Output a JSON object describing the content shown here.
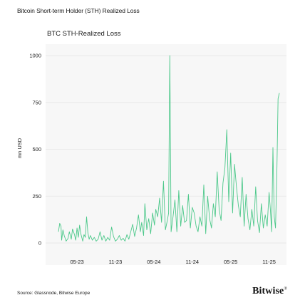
{
  "header": {
    "title": "Bitcoin Short-term Holder (STH) Realized Loss"
  },
  "footer": {
    "source": "Source: Glassnode, Bitwise Europe",
    "brand": "Bitwise",
    "brand_mark": "®"
  },
  "chart_data": {
    "type": "line",
    "title": "BTC STH-Realized Loss",
    "xlabel": "",
    "ylabel": "mn USD",
    "ylim": [
      0,
      1000
    ],
    "yticks": [
      0,
      250,
      500,
      750,
      1000
    ],
    "xtick_labels": [
      {
        "label": "05-23",
        "t": 2.9
      },
      {
        "label": "11-23",
        "t": 8.9
      },
      {
        "label": "05-24",
        "t": 14.9
      },
      {
        "label": "11-24",
        "t": 20.9
      },
      {
        "label": "05-25",
        "t": 26.9
      },
      {
        "label": "11-25",
        "t": 32.9
      }
    ],
    "grid": true,
    "legend": "none",
    "color": "#4cc88a",
    "series": [
      {
        "x_unit": "months since 2023-02",
        "x": [
          0.0,
          0.2,
          0.4,
          0.5,
          0.7,
          0.9,
          1.2,
          1.5,
          1.7,
          2.0,
          2.2,
          2.5,
          2.7,
          2.9,
          3.1,
          3.3,
          3.5,
          3.8,
          4.0,
          4.2,
          4.4,
          4.6,
          4.8,
          5.0,
          5.3,
          5.6,
          5.9,
          6.2,
          6.5,
          6.8,
          7.1,
          7.4,
          7.7,
          8.0,
          8.3,
          8.6,
          8.9,
          9.2,
          9.5,
          9.8,
          10.1,
          10.4,
          10.7,
          11.0,
          11.3,
          11.6,
          11.9,
          12.2,
          12.5,
          12.8,
          13.0,
          13.3,
          13.5,
          13.8,
          14.1,
          14.4,
          14.7,
          15.0,
          15.2,
          15.5,
          15.8,
          16.1,
          16.4,
          16.7,
          17.0,
          17.2,
          17.4,
          17.6,
          17.9,
          18.2,
          18.5,
          18.8,
          19.1,
          19.4,
          19.7,
          20.0,
          20.3,
          20.6,
          20.9,
          21.2,
          21.5,
          21.8,
          22.1,
          22.4,
          22.7,
          23.0,
          23.3,
          23.6,
          23.9,
          24.2,
          24.5,
          24.8,
          25.1,
          25.4,
          25.7,
          26.0,
          26.3,
          26.6,
          26.9,
          27.2,
          27.5,
          27.8,
          28.1,
          28.4,
          28.7,
          29.0,
          29.3,
          29.6,
          29.9,
          30.2,
          30.5,
          30.8,
          31.1,
          31.4,
          31.7,
          32.0,
          32.3,
          32.6,
          32.9,
          33.1,
          33.3,
          33.5,
          33.7,
          33.9,
          34.1,
          34.3,
          34.5
        ],
        "values": [
          60,
          105,
          90,
          15,
          70,
          40,
          10,
          25,
          60,
          20,
          75,
          45,
          15,
          80,
          30,
          95,
          50,
          10,
          45,
          30,
          140,
          55,
          20,
          40,
          15,
          30,
          10,
          20,
          60,
          15,
          40,
          10,
          30,
          15,
          85,
          35,
          10,
          20,
          40,
          15,
          25,
          10,
          45,
          20,
          60,
          100,
          35,
          80,
          150,
          60,
          110,
          40,
          210,
          70,
          130,
          50,
          160,
          95,
          180,
          140,
          240,
          110,
          330,
          70,
          120,
          160,
          1000,
          60,
          140,
          230,
          60,
          280,
          90,
          200,
          110,
          120,
          260,
          80,
          190,
          160,
          90,
          60,
          140,
          90,
          310,
          50,
          250,
          130,
          80,
          210,
          140,
          380,
          180,
          120,
          320,
          400,
          605,
          220,
          480,
          160,
          420,
          300,
          200,
          140,
          350,
          90,
          260,
          130,
          70,
          180,
          90,
          300,
          120,
          55,
          210,
          80,
          150,
          90,
          270,
          180,
          60,
          510,
          140,
          80,
          350,
          770,
          800
        ]
      }
    ]
  }
}
